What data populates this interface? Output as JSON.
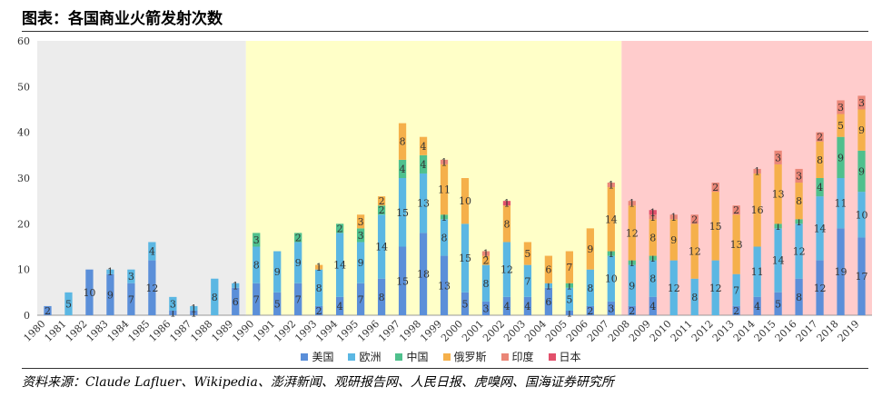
{
  "title": "图表：各国商业火箭发射次数",
  "source": "资料来源：Claude Lafluer、Wikipedia、澎湃新闻、观研报告网、人民日报、虎嗅网、国海证券研究所",
  "colors": {
    "美国": "#5b8fd9",
    "欧洲": "#5bb7e3",
    "中国": "#4fc08d",
    "俄罗斯": "#f5b04b",
    "印度": "#ea8677",
    "日本": "#e2506b",
    "bg_1980s": "#ececec",
    "bg_1990s": "#ffffc8",
    "bg_2010s": "#ffcccc"
  },
  "chart_data": {
    "type": "bar",
    "stacked": true,
    "title": "",
    "xlabel": "",
    "ylabel": "",
    "ylim": [
      0,
      60
    ],
    "yticks": [
      0,
      10,
      20,
      30,
      40,
      50,
      60
    ],
    "grid": false,
    "legend_position": "bottom",
    "categories": [
      "1980",
      "1981",
      "1982",
      "1983",
      "1984",
      "1985",
      "1986",
      "1987",
      "1988",
      "1989",
      "1990",
      "1991",
      "1992",
      "1993",
      "1994",
      "1995",
      "1996",
      "1997",
      "1998",
      "1999",
      "2000",
      "2001",
      "2002",
      "2003",
      "2004",
      "2005",
      "2006",
      "2007",
      "2008",
      "2009",
      "2010",
      "2011",
      "2012",
      "2013",
      "2014",
      "2015",
      "2016",
      "2017",
      "2018",
      "2019"
    ],
    "series": [
      {
        "name": "美国",
        "values": [
          2,
          0,
          10,
          9,
          7,
          12,
          1,
          1,
          0,
          6,
          7,
          5,
          7,
          2,
          4,
          7,
          8,
          15,
          18,
          13,
          5,
          3,
          4,
          4,
          6,
          1,
          2,
          3,
          2,
          4,
          0,
          0,
          0,
          2,
          4,
          5,
          8,
          12,
          19,
          17
        ]
      },
      {
        "name": "欧洲",
        "values": [
          0,
          5,
          0,
          1,
          3,
          4,
          3,
          1,
          8,
          1,
          8,
          9,
          9,
          8,
          14,
          9,
          14,
          15,
          13,
          8,
          15,
          8,
          12,
          7,
          1,
          5,
          8,
          10,
          9,
          8,
          12,
          8,
          12,
          7,
          11,
          14,
          12,
          14,
          11,
          10
        ]
      },
      {
        "name": "中国",
        "values": [
          0,
          0,
          0,
          0,
          0,
          0,
          0,
          0,
          0,
          0,
          3,
          0,
          2,
          0,
          2,
          3,
          2,
          4,
          4,
          1,
          0,
          0,
          0,
          0,
          0,
          1,
          0,
          1,
          1,
          1,
          0,
          0,
          0,
          0,
          0,
          1,
          1,
          4,
          9,
          9
        ]
      },
      {
        "name": "俄罗斯",
        "values": [
          0,
          0,
          0,
          0,
          0,
          0,
          0,
          0,
          0,
          0,
          0,
          0,
          0,
          1,
          0,
          3,
          2,
          8,
          4,
          11,
          10,
          2,
          8,
          5,
          6,
          7,
          9,
          14,
          12,
          8,
          9,
          12,
          15,
          13,
          16,
          13,
          8,
          8,
          5,
          9
        ]
      },
      {
        "name": "印度",
        "values": [
          0,
          0,
          0,
          0,
          0,
          0,
          0,
          0,
          0,
          0,
          0,
          0,
          0,
          0,
          0,
          0,
          0,
          0,
          0,
          1,
          0,
          1,
          0,
          0,
          0,
          0,
          0,
          1,
          1,
          1,
          1,
          2,
          2,
          2,
          1,
          3,
          3,
          2,
          3,
          3
        ]
      },
      {
        "name": "日本",
        "values": [
          0,
          0,
          0,
          0,
          0,
          0,
          0,
          0,
          0,
          0,
          0,
          0,
          0,
          0,
          0,
          0,
          0,
          0,
          0,
          0,
          0,
          0,
          1,
          0,
          0,
          0,
          0,
          0,
          0,
          1,
          0,
          0,
          0,
          0,
          0,
          0,
          0,
          0,
          0,
          0
        ]
      }
    ],
    "bar_labels_hidden": [
      [
        1986,
        "美国"
      ],
      [
        1987,
        "美国"
      ]
    ],
    "period_bands": [
      {
        "from": "1980",
        "to": "1989",
        "color_key": "bg_1980s"
      },
      {
        "from": "1990",
        "to": "2007",
        "color_key": "bg_1990s"
      },
      {
        "from": "2008",
        "to": "2019",
        "color_key": "bg_2010s"
      }
    ]
  }
}
